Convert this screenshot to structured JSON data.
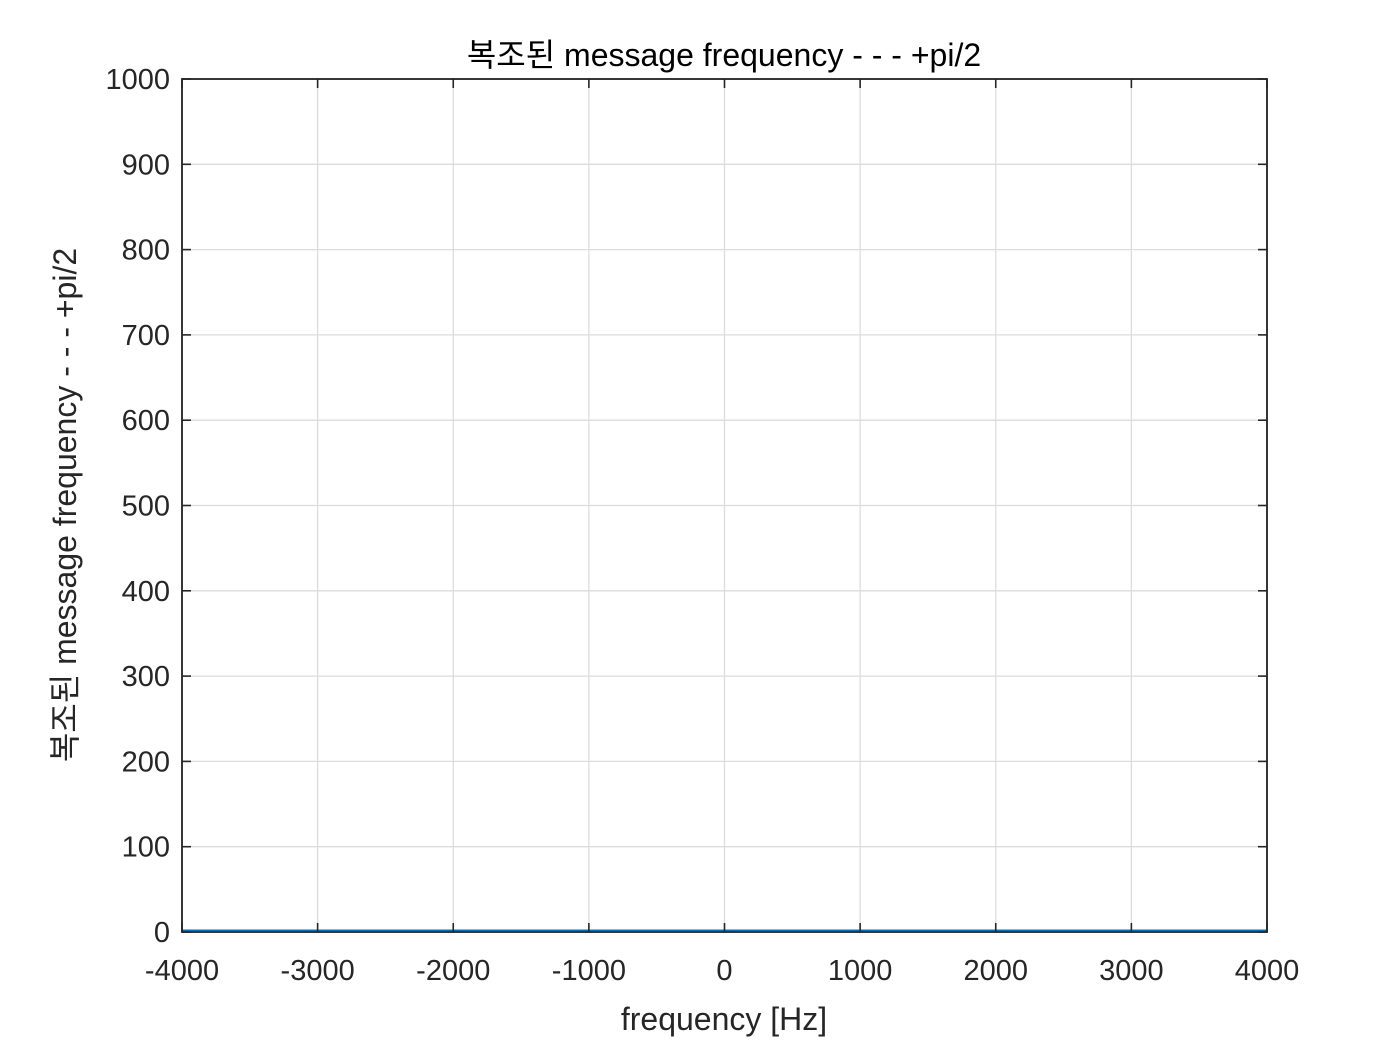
{
  "chart_data": {
    "type": "line",
    "title": "복조된 message frequency - - - +pi/2",
    "xlabel": "frequency [Hz]",
    "ylabel": "복조된 message frequency - - - +pi/2",
    "xlim": [
      -4000,
      4000
    ],
    "ylim": [
      0,
      1000
    ],
    "xticks": [
      -4000,
      -3000,
      -2000,
      -1000,
      0,
      1000,
      2000,
      3000,
      4000
    ],
    "yticks": [
      0,
      100,
      200,
      300,
      400,
      500,
      600,
      700,
      800,
      900,
      1000
    ],
    "grid": true,
    "series": [
      {
        "color": "#0072bd",
        "x": [
          -4000,
          -3000,
          -2000,
          -1000,
          0,
          1000,
          2000,
          3000,
          4000
        ],
        "y": [
          2,
          2,
          2,
          2,
          2,
          2,
          2,
          2,
          2
        ]
      }
    ]
  }
}
